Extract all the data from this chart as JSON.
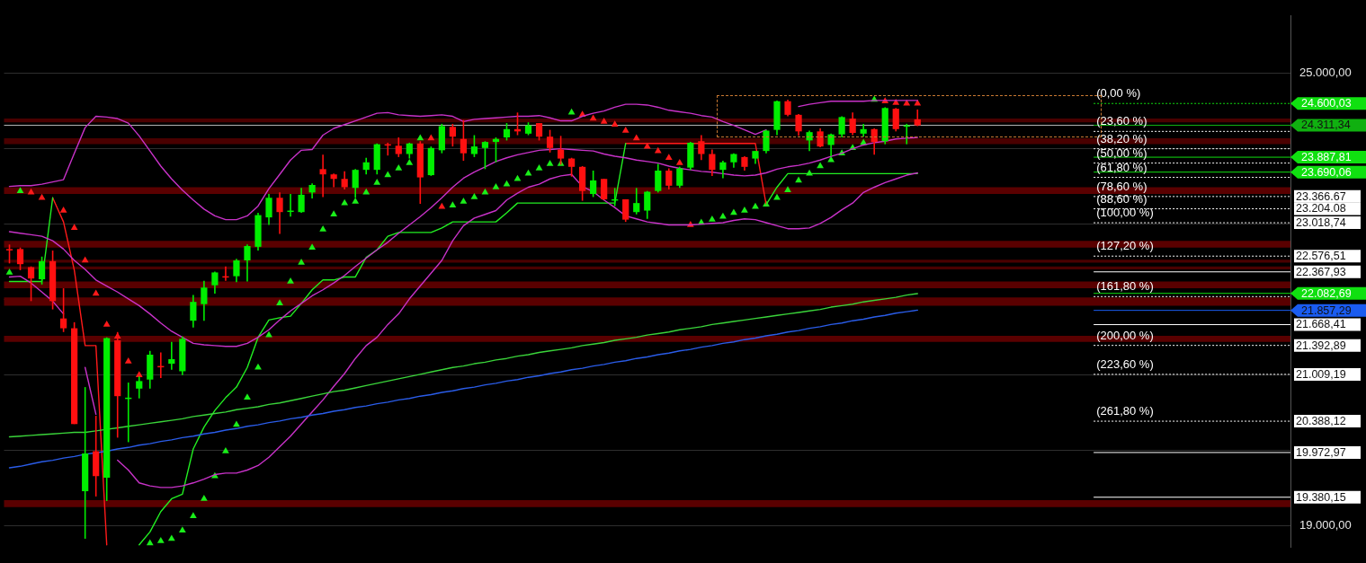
{
  "chart_data": {
    "type": "candlestick",
    "categories": [
      null,
      null,
      null,
      null,
      null,
      null,
      null,
      null,
      null,
      null,
      null,
      null,
      null,
      null,
      null,
      null,
      null,
      null,
      null,
      null,
      null,
      null,
      null,
      null,
      null,
      null,
      null,
      null,
      null,
      null,
      null,
      null,
      null,
      null,
      null,
      null,
      null,
      null,
      null,
      null,
      null,
      null,
      null,
      null,
      null,
      null,
      null,
      null,
      null,
      null,
      null,
      null,
      null,
      null,
      null,
      null,
      null,
      null,
      null,
      null,
      null,
      null,
      null,
      null,
      null,
      null,
      null,
      null,
      null,
      null,
      null,
      null,
      null,
      null,
      null,
      null,
      null,
      null,
      null,
      null,
      null,
      null,
      null,
      null,
      null,
      null,
      null,
      null,
      null,
      null,
      null,
      null,
      null,
      null,
      null,
      null,
      null,
      null,
      null,
      null,
      null,
      null,
      null,
      null,
      null,
      null,
      null,
      null,
      null,
      null,
      null,
      null,
      null,
      null,
      null,
      null,
      null,
      null,
      null
    ],
    "ohlc": [
      [
        22670,
        22730,
        22480,
        22660
      ],
      [
        22670,
        22690,
        22390,
        22470
      ],
      [
        22430,
        22440,
        21980,
        22280
      ],
      [
        22270,
        22570,
        22200,
        22510
      ],
      [
        22510,
        22650,
        21870,
        21980
      ],
      [
        21750,
        22150,
        21570,
        21620
      ],
      [
        21620,
        21700,
        20350,
        20350
      ],
      [
        19460,
        20840,
        18830,
        19960
      ],
      [
        19990,
        20460,
        19390,
        19660
      ],
      [
        19640,
        21500,
        19330,
        21490
      ],
      [
        21460,
        21570,
        20170,
        20720
      ],
      [
        20690,
        20900,
        20110,
        20700
      ],
      [
        20820,
        20980,
        20690,
        20920
      ],
      [
        20940,
        21320,
        20820,
        21270
      ],
      [
        21120,
        21300,
        20960,
        21110
      ],
      [
        21150,
        21440,
        21070,
        21210
      ],
      [
        21050,
        21510,
        21000,
        21480
      ],
      [
        21720,
        22060,
        21630,
        21970
      ],
      [
        21940,
        22250,
        21720,
        22160
      ],
      [
        22190,
        22370,
        22080,
        22360
      ],
      [
        22310,
        22440,
        22250,
        22300
      ],
      [
        22310,
        22540,
        22230,
        22520
      ],
      [
        22520,
        22730,
        22240,
        22710
      ],
      [
        22700,
        23150,
        22650,
        23120
      ],
      [
        23090,
        23400,
        22990,
        23350
      ],
      [
        23350,
        23420,
        22870,
        23160
      ],
      [
        23170,
        23400,
        23100,
        23180
      ],
      [
        23160,
        23480,
        23150,
        23390
      ],
      [
        23420,
        23540,
        23340,
        23520
      ],
      [
        23730,
        23920,
        23360,
        23660
      ],
      [
        23660,
        23670,
        23490,
        23600
      ],
      [
        23600,
        23700,
        23460,
        23490
      ],
      [
        23480,
        23730,
        23350,
        23720
      ],
      [
        23720,
        23880,
        23660,
        23820
      ],
      [
        23720,
        24070,
        23660,
        24060
      ],
      [
        24060,
        24080,
        23910,
        24050
      ],
      [
        24040,
        24150,
        23890,
        23930
      ],
      [
        23930,
        24080,
        23870,
        24070
      ],
      [
        24070,
        24100,
        23270,
        23620
      ],
      [
        23650,
        24030,
        23640,
        24010
      ],
      [
        23980,
        24330,
        23940,
        24300
      ],
      [
        24290,
        24330,
        24030,
        24160
      ],
      [
        24130,
        24380,
        23840,
        23940
      ],
      [
        23930,
        24180,
        23890,
        24030
      ],
      [
        24010,
        24100,
        23730,
        24090
      ],
      [
        24090,
        24150,
        23820,
        24130
      ],
      [
        24150,
        24340,
        24110,
        24260
      ],
      [
        24260,
        24480,
        24180,
        24230
      ],
      [
        24200,
        24350,
        24180,
        24310
      ],
      [
        24340,
        24340,
        24110,
        24160
      ],
      [
        24160,
        24250,
        23950,
        24010
      ],
      [
        23990,
        24170,
        23790,
        23870
      ],
      [
        23870,
        23880,
        23630,
        23760
      ],
      [
        23760,
        23770,
        23310,
        23440
      ],
      [
        23400,
        23710,
        23360,
        23580
      ],
      [
        23600,
        23600,
        23320,
        23330
      ],
      [
        23320,
        23480,
        23240,
        23330
      ],
      [
        23330,
        23330,
        23030,
        23060
      ],
      [
        23160,
        23480,
        23130,
        23280
      ],
      [
        23180,
        23440,
        23070,
        23430
      ],
      [
        23440,
        23800,
        23420,
        23710
      ],
      [
        23710,
        23740,
        23460,
        23510
      ],
      [
        23510,
        23760,
        23480,
        23740
      ],
      [
        23750,
        24090,
        23720,
        24080
      ],
      [
        24100,
        24180,
        23850,
        23930
      ],
      [
        23930,
        23990,
        23640,
        23720
      ],
      [
        23720,
        23840,
        23610,
        23820
      ],
      [
        23820,
        23940,
        23750,
        23930
      ],
      [
        23890,
        23900,
        23710,
        23760
      ],
      [
        23870,
        23970,
        23800,
        23970
      ],
      [
        23970,
        24250,
        23940,
        24240
      ],
      [
        24250,
        24640,
        24180,
        24630
      ],
      [
        24630,
        24650,
        24430,
        24450
      ],
      [
        24450,
        24460,
        24170,
        24230
      ],
      [
        24110,
        24240,
        23970,
        24220
      ],
      [
        24230,
        24270,
        24020,
        24030
      ],
      [
        24050,
        24200,
        23900,
        24190
      ],
      [
        24190,
        24430,
        24150,
        24420
      ],
      [
        24400,
        24480,
        24180,
        24210
      ],
      [
        24200,
        24330,
        24160,
        24260
      ],
      [
        24260,
        24270,
        23920,
        24090
      ],
      [
        24100,
        24550,
        24060,
        24540
      ],
      [
        24530,
        24540,
        24230,
        24260
      ],
      [
        24300,
        24330,
        24060,
        24310
      ],
      [
        24390,
        24520,
        24300,
        24310
      ],
      null,
      null,
      null,
      null,
      null,
      null,
      null,
      null,
      null,
      null,
      null,
      null,
      null,
      null,
      null,
      null,
      null,
      null,
      null,
      null,
      null,
      null,
      null,
      null,
      null,
      null,
      null,
      null,
      null,
      null,
      null,
      null,
      null,
      null
    ],
    "series": [
      {
        "type": "line",
        "color": "#3ad43a",
        "values": [
          20180,
          20190,
          20200,
          20210,
          20220,
          20230,
          20240,
          20240,
          20260,
          20280,
          20300,
          20320,
          20340,
          20360,
          20380,
          20400,
          20420,
          20450,
          20470,
          20490,
          20510,
          20540,
          20560,
          20580,
          20610,
          20630,
          20660,
          20690,
          20720,
          20750,
          20780,
          20800,
          20830,
          20860,
          20890,
          20920,
          20950,
          20980,
          21010,
          21040,
          21070,
          21100,
          21120,
          21150,
          21170,
          21200,
          21220,
          21250,
          21270,
          21300,
          21320,
          21340,
          21360,
          21390,
          21410,
          21430,
          21460,
          21480,
          21500,
          21530,
          21550,
          21570,
          21600,
          21620,
          21640,
          21670,
          21690,
          21710,
          21730,
          21750,
          21770,
          21790,
          21810,
          21830,
          21850,
          21870,
          21900,
          21920,
          21940,
          21970,
          21990,
          22010,
          22030,
          22060,
          22080,
          null,
          null,
          null,
          null,
          null,
          null,
          null,
          null,
          null,
          null,
          null,
          null,
          null,
          null,
          null,
          null,
          null,
          null,
          null,
          null,
          null,
          null,
          null,
          null,
          null,
          null,
          null,
          null,
          null,
          null,
          null,
          null,
          null,
          null
        ]
      },
      {
        "type": "line",
        "color": "#2a5ce8",
        "values": [
          19770,
          19790,
          19820,
          19850,
          19870,
          19900,
          19920,
          19950,
          19970,
          19990,
          20020,
          20040,
          20070,
          20090,
          20120,
          20140,
          20170,
          20190,
          20220,
          20240,
          20270,
          20290,
          20320,
          20340,
          20370,
          20390,
          20420,
          20440,
          20470,
          20490,
          20520,
          20540,
          20570,
          20590,
          20620,
          20640,
          20670,
          20690,
          20720,
          20740,
          20770,
          20790,
          20820,
          20840,
          20870,
          20890,
          20920,
          20940,
          20970,
          20990,
          21020,
          21040,
          21070,
          21090,
          21120,
          21140,
          21170,
          21190,
          21220,
          21240,
          21270,
          21290,
          21320,
          21340,
          21370,
          21390,
          21420,
          21440,
          21470,
          21490,
          21520,
          21540,
          21570,
          21590,
          21620,
          21640,
          21670,
          21690,
          21720,
          21740,
          21770,
          21790,
          21820,
          21840,
          21860,
          null,
          null,
          null,
          null,
          null,
          null,
          null,
          null,
          null,
          null,
          null,
          null,
          null,
          null,
          null,
          null,
          null,
          null,
          null,
          null,
          null,
          null,
          null,
          null,
          null,
          null,
          null,
          null,
          null,
          null,
          null,
          null,
          null,
          null
        ]
      },
      {
        "type": "line",
        "color": "#c832c8",
        "values": [
          23500,
          23510,
          23510,
          23530,
          23560,
          23590,
          23940,
          24280,
          24430,
          24420,
          24400,
          24340,
          24170,
          23970,
          23770,
          23600,
          23450,
          23320,
          23200,
          23110,
          23060,
          23060,
          23110,
          23240,
          23470,
          23660,
          23850,
          23980,
          23990,
          24180,
          24270,
          24320,
          24370,
          24420,
          24470,
          24480,
          24450,
          24440,
          24430,
          24440,
          24450,
          24430,
          24360,
          24390,
          24400,
          24410,
          24420,
          24430,
          24430,
          24440,
          24410,
          24370,
          24370,
          24430,
          24470,
          24500,
          24550,
          24590,
          24590,
          24580,
          24550,
          24510,
          24490,
          24470,
          24440,
          24420,
          24360,
          24310,
          24250,
          24190,
          24250,
          null,
          null,
          24560,
          24590,
          24610,
          24630,
          24630,
          24630,
          24630,
          24640,
          24640,
          24640,
          24640,
          24640,
          null,
          null,
          null,
          null,
          null,
          null,
          null,
          null,
          null,
          null,
          null,
          null,
          null,
          null,
          null,
          null,
          null,
          null,
          null,
          null,
          null,
          null,
          null,
          null,
          null,
          null,
          null,
          null,
          null,
          null,
          null,
          null,
          null,
          null
        ]
      },
      {
        "type": "line",
        "color": "#c832c8",
        "values": [
          22900,
          22880,
          22860,
          22840,
          22780,
          22670,
          22520,
          22400,
          22260,
          22180,
          22100,
          22010,
          21920,
          21810,
          21690,
          21580,
          21500,
          21420,
          21400,
          21390,
          21380,
          21380,
          21420,
          21500,
          21600,
          21730,
          21850,
          21950,
          22050,
          22130,
          22220,
          22320,
          22440,
          22550,
          22660,
          22760,
          22880,
          22990,
          23100,
          23220,
          23350,
          23490,
          23610,
          23690,
          23760,
          23830,
          23880,
          23920,
          23950,
          23980,
          23990,
          24000,
          23990,
          23980,
          23970,
          23930,
          23900,
          23880,
          23850,
          23830,
          23810,
          23770,
          23740,
          23720,
          23700,
          23690,
          23670,
          23650,
          23640,
          23650,
          23680,
          23730,
          23760,
          23780,
          23810,
          23850,
          23900,
          23940,
          24000,
          24050,
          24080,
          24100,
          24130,
          24140,
          24150,
          null,
          null,
          null,
          null,
          null,
          null,
          null,
          null,
          null,
          null,
          null,
          null,
          null,
          null,
          null,
          null,
          null,
          null,
          null,
          null,
          null,
          null,
          null,
          null,
          null,
          null,
          null,
          null,
          null,
          null,
          null,
          null,
          null,
          null
        ]
      },
      {
        "type": "line",
        "color": "#c832c8",
        "values": [
          22300,
          22310,
          22220,
          22100,
          21980,
          21810,
          null,
          21100,
          20480,
          null,
          19870,
          19740,
          19570,
          19530,
          19510,
          19510,
          19530,
          19570,
          19620,
          19680,
          19700,
          19700,
          19740,
          19800,
          19910,
          20050,
          20190,
          20350,
          20510,
          20670,
          20850,
          21020,
          21220,
          21390,
          21500,
          21670,
          21810,
          22010,
          22180,
          22350,
          22520,
          22780,
          22980,
          23080,
          23130,
          23180,
          23320,
          23410,
          23490,
          23530,
          23600,
          23640,
          23660,
          23500,
          23430,
          23320,
          23220,
          23110,
          23070,
          23030,
          23010,
          22990,
          22990,
          22990,
          23000,
          23010,
          23020,
          23050,
          23070,
          23060,
          23020,
          22980,
          22940,
          22940,
          22950,
          23010,
          23090,
          23190,
          23280,
          23420,
          23490,
          23550,
          23600,
          23650,
          23680,
          null,
          null,
          null,
          null,
          null,
          null,
          null,
          null,
          null,
          null,
          null,
          null,
          null,
          null,
          null,
          null,
          null,
          null,
          null,
          null,
          null,
          null,
          null,
          null,
          null,
          null,
          null,
          null,
          null,
          null,
          null,
          null,
          null,
          null
        ]
      },
      {
        "type": "line",
        "color": "#22ee22",
        "values": [
          22240,
          22240,
          22240,
          22240,
          23350,
          null,
          null,
          null,
          null,
          null,
          null,
          null,
          18750,
          18920,
          19190,
          19360,
          19420,
          20020,
          20310,
          20530,
          20700,
          20840,
          21100,
          21500,
          21730,
          21760,
          21780,
          21950,
          22130,
          22260,
          22260,
          22300,
          22300,
          22560,
          22660,
          22840,
          22890,
          22890,
          22890,
          22890,
          22950,
          23030,
          23030,
          23030,
          23030,
          23030,
          23150,
          23280,
          23280,
          23280,
          23280,
          23280,
          23280,
          23280,
          23280,
          23280,
          23280,
          24070,
          null,
          null,
          null,
          null,
          null,
          null,
          null,
          null,
          null,
          null,
          null,
          null,
          23260,
          23490,
          23670,
          23670,
          23670,
          23670,
          23670,
          23670,
          23670,
          23670,
          23670,
          23670,
          23670,
          23670,
          23670,
          null,
          null,
          null,
          null,
          null,
          null,
          null,
          null,
          null,
          null,
          null,
          null,
          null,
          null,
          null,
          null,
          null,
          null,
          null,
          null,
          null,
          null,
          null,
          null,
          null,
          null,
          null,
          null,
          null,
          null,
          null,
          null,
          null,
          null
        ]
      },
      {
        "type": "line",
        "color": "#ff1a1a",
        "values": [
          null,
          null,
          null,
          null,
          23350,
          23030,
          22390,
          21390,
          21390,
          18750,
          null,
          null,
          null,
          null,
          null,
          null,
          null,
          null,
          null,
          null,
          null,
          null,
          null,
          null,
          null,
          null,
          null,
          null,
          null,
          null,
          null,
          null,
          null,
          null,
          null,
          null,
          null,
          null,
          null,
          null,
          null,
          null,
          null,
          null,
          null,
          null,
          null,
          null,
          null,
          null,
          null,
          null,
          null,
          null,
          null,
          null,
          null,
          24070,
          24070,
          24070,
          24070,
          24070,
          24070,
          24070,
          24070,
          24070,
          24070,
          24070,
          24070,
          24070,
          23260,
          null,
          null,
          null,
          null,
          null,
          null,
          null,
          null,
          null,
          null,
          null,
          null,
          null,
          null,
          null,
          null,
          null,
          null,
          null,
          null,
          null,
          null,
          null,
          null,
          null,
          null,
          null,
          null,
          null,
          null,
          null,
          null,
          null,
          null,
          null,
          null,
          null,
          null,
          null,
          null,
          null,
          null,
          null,
          null,
          null,
          null,
          null,
          null
        ]
      },
      {
        "type": "scatter",
        "marker": "triangle",
        "color": "#1aee1a",
        "values": [
          22360,
          23440,
          null,
          null,
          null,
          null,
          null,
          null,
          null,
          null,
          null,
          null,
          null,
          18770,
          18800,
          18830,
          18940,
          19130,
          19360,
          19660,
          19990,
          20340,
          20700,
          21100,
          21530,
          21950,
          22240,
          22490,
          22690,
          22930,
          23130,
          23280,
          23300,
          23420,
          23550,
          23650,
          23740,
          23810,
          24140,
          null,
          null,
          23250,
          23300,
          23360,
          23420,
          23490,
          23530,
          23600,
          23670,
          23740,
          23800,
          23800,
          24480,
          null,
          null,
          null,
          null,
          null,
          null,
          null,
          null,
          null,
          null,
          null,
          23020,
          23060,
          23100,
          23150,
          23180,
          23230,
          23260,
          23350,
          23450,
          23580,
          23670,
          23770,
          23850,
          23940,
          24010,
          24080,
          24650,
          null,
          null,
          null,
          null,
          null,
          null,
          null,
          null,
          null,
          null,
          null,
          null,
          null,
          null,
          null,
          null,
          null,
          null,
          null,
          null,
          null,
          null,
          null,
          null,
          null,
          null,
          null,
          null,
          null,
          null,
          null,
          null,
          null,
          null,
          null,
          null,
          null,
          null
        ]
      },
      {
        "type": "scatter",
        "marker": "triangle",
        "color": "#ff1a1a",
        "values": [
          null,
          null,
          23420,
          23350,
          null,
          23180,
          22950,
          22520,
          22080,
          21670,
          21510,
          21180,
          21000,
          null,
          null,
          null,
          null,
          null,
          null,
          null,
          null,
          null,
          null,
          null,
          null,
          null,
          null,
          null,
          null,
          null,
          null,
          null,
          null,
          null,
          null,
          null,
          null,
          null,
          null,
          24140,
          23230,
          null,
          null,
          null,
          null,
          null,
          null,
          null,
          null,
          null,
          null,
          null,
          null,
          24450,
          24400,
          24360,
          24320,
          24240,
          24140,
          24030,
          23970,
          23880,
          23810,
          22990,
          null,
          null,
          null,
          null,
          null,
          null,
          null,
          null,
          null,
          null,
          null,
          null,
          null,
          null,
          null,
          null,
          null,
          24630,
          24610,
          24600,
          24600,
          null,
          null,
          null,
          null,
          null,
          null,
          null,
          null,
          null,
          null,
          null,
          null,
          null,
          null,
          null,
          null,
          null,
          null,
          null,
          null,
          null,
          null,
          null,
          null,
          null,
          null,
          null,
          null,
          null,
          null,
          null,
          null,
          null,
          null
        ]
      }
    ],
    "ylim": [
      18720,
      25760
    ],
    "yticks": [
      {
        "value": 25000,
        "label": "25.000,00"
      },
      {
        "value": 24000,
        "label": null
      },
      {
        "value": 23000,
        "label": null
      },
      {
        "value": 22000,
        "label": null
      },
      {
        "value": 21000,
        "label": null
      },
      {
        "value": 20000,
        "label": null
      },
      {
        "value": 19000,
        "label": "19.000,00"
      }
    ],
    "grid": "y",
    "bands": [
      {
        "axis": "y",
        "from": 24350,
        "to": 24400,
        "color": "#4a0000"
      },
      {
        "axis": "y",
        "from": 24060,
        "to": 24140,
        "color": "#4a0000"
      },
      {
        "axis": "y",
        "from": 23400,
        "to": 23490,
        "color": "#5a0000"
      },
      {
        "axis": "y",
        "from": 22690,
        "to": 22780,
        "color": "#5a0000"
      },
      {
        "axis": "y",
        "from": 22490,
        "to": 22530,
        "color": "#4a0000"
      },
      {
        "axis": "y",
        "from": 22400,
        "to": 22440,
        "color": "#4a0000"
      },
      {
        "axis": "y",
        "from": 22150,
        "to": 22240,
        "color": "#5a0000"
      },
      {
        "axis": "y",
        "from": 21920,
        "to": 22030,
        "color": "#5a0000"
      },
      {
        "axis": "y",
        "from": 21440,
        "to": 21520,
        "color": "#5a0000"
      },
      {
        "axis": "y",
        "from": 19250,
        "to": 19340,
        "color": "#5a0000"
      }
    ],
    "ref_lines": [
      {
        "axis": "y",
        "value": 24311.34,
        "line_style": "solid",
        "color": "#b4b4b4"
      },
      {
        "axis": "y",
        "value": 24600.03,
        "label": "24.600,03",
        "line_style": "dotted",
        "color": "#10e010"
      },
      {
        "axis": "y",
        "value": 24230,
        "line_style": "dotted",
        "color": "#ffffff"
      },
      {
        "axis": "y",
        "value": 24000,
        "line_style": "dotted",
        "color": "#ffffff"
      },
      {
        "axis": "y",
        "value": 23810,
        "line_style": "dotted",
        "color": "#ffffff"
      },
      {
        "axis": "y",
        "value": 23620,
        "line_style": "dotted",
        "color": "#ffffff"
      },
      {
        "axis": "y",
        "value": 23366.67,
        "label": "23.366.67",
        "line_style": "dotted",
        "color": "#ffffff"
      },
      {
        "axis": "y",
        "value": 23204.08,
        "label": "23.204.08",
        "line_style": "dotted",
        "color": "#ffffff"
      },
      {
        "axis": "y",
        "value": 23018.74,
        "label": "23.018,74",
        "line_style": "dotted",
        "color": "#ffffff"
      },
      {
        "axis": "y",
        "value": 22576.51,
        "label": "22.576,51",
        "line_style": "dotted",
        "color": "#ffffff"
      },
      {
        "axis": "y",
        "value": 22040,
        "line_style": "dotted",
        "color": "#ffffff"
      },
      {
        "axis": "y",
        "value": 21392.89,
        "label": "21.392,89",
        "line_style": "dotted",
        "color": "#ffffff"
      },
      {
        "axis": "y",
        "value": 21009.19,
        "label": "21.009,19",
        "line_style": "dotted",
        "color": "#ffffff"
      },
      {
        "axis": "y",
        "value": 20388.12,
        "label": "20.388,12",
        "line_style": "dotted",
        "color": "#ffffff"
      },
      {
        "axis": "y",
        "value": 24311.34,
        "label": "24.311,34",
        "color": "#10b010"
      },
      {
        "axis": "y",
        "value": 23887.81,
        "label": "23.887,81",
        "color": "#10e010"
      },
      {
        "axis": "y",
        "value": 23690.06,
        "label": "23.690,06",
        "color": "#10e010"
      },
      {
        "axis": "y",
        "value": 22367.93,
        "label": "22.367,93",
        "color": "#ffffff"
      },
      {
        "axis": "y",
        "value": 22082.69,
        "label": "22.082,69",
        "color": "#10e010"
      },
      {
        "axis": "y",
        "value": 21857.29,
        "label": "21.857,29",
        "color": "#1a5cf0"
      },
      {
        "axis": "y",
        "value": 21668.41,
        "label": "21.668,41",
        "color": "#ffffff"
      },
      {
        "axis": "y",
        "value": 19972.97,
        "label": "19.972,97",
        "color": "#ffffff"
      },
      {
        "axis": "y",
        "value": 19380.15,
        "label": "19.380,15",
        "color": "#ffffff"
      }
    ],
    "annotations": [
      {
        "text": "(0,00 %)",
        "y": 24600.03
      },
      {
        "text": "(23,60 %)",
        "y": 24230
      },
      {
        "text": "(38,20 %)",
        "y": 24000
      },
      {
        "text": "(50,00 %)",
        "y": 23810
      },
      {
        "text": "(61,80 %)",
        "y": 23620
      },
      {
        "text": "(78,60 %)",
        "y": 23366.67
      },
      {
        "text": "(88,60 %)",
        "y": 23204.08
      },
      {
        "text": "(100,00 %)",
        "y": 23018.74
      },
      {
        "text": "(127,20 %)",
        "y": 22576.51
      },
      {
        "text": "(161,80 %)",
        "y": 22040
      },
      {
        "text": "(200,00 %)",
        "y": 21392.89
      },
      {
        "text": "(223,60 %)",
        "y": 21009.19
      },
      {
        "text": "(261,80 %)",
        "y": 20388.12
      }
    ]
  }
}
